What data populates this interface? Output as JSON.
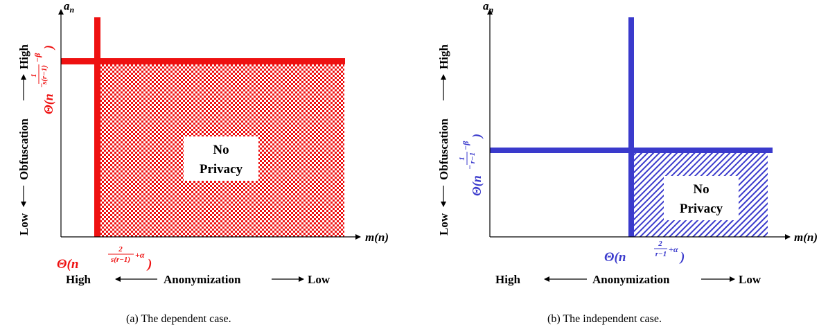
{
  "panels": [
    {
      "id": "a",
      "color": "#ee1111",
      "pattern": "checker",
      "y_axis_label": "a",
      "y_axis_sub": "n",
      "x_axis_label": "m(n)",
      "y_threshold": {
        "theta": "Θ(n",
        "exp_sign": "−",
        "frac_num": "1",
        "frac_den": "s(r−1)",
        "exp_tail": "−β",
        "close": ")"
      },
      "x_threshold": {
        "theta": "Θ(n",
        "frac_num": "2",
        "frac_den": "s(r−1)",
        "exp_tail": "+α",
        "close": ")"
      },
      "y_scale": {
        "low": "Low",
        "title": "Obfuscation",
        "high": "High"
      },
      "x_scale": {
        "left": "High",
        "title": "Anonymization",
        "right": "Low"
      },
      "region_label_1": "No",
      "region_label_2": "Privacy",
      "caption": "(a) The dependent case."
    },
    {
      "id": "b",
      "color": "#3a3acc",
      "pattern": "hatch",
      "y_axis_label": "a",
      "y_axis_sub": "n",
      "x_axis_label": "m(n)",
      "y_threshold": {
        "theta": "Θ(n",
        "exp_sign": "−",
        "frac_num": "1",
        "frac_den": "r−1",
        "exp_tail": "−β",
        "close": ")"
      },
      "x_threshold": {
        "theta": "Θ(n",
        "frac_num": "2",
        "frac_den": "r−1",
        "exp_tail": "+α",
        "close": ")"
      },
      "y_scale": {
        "low": "Low",
        "title": "Obfuscation",
        "high": "High"
      },
      "x_scale": {
        "left": "High",
        "title": "Anonymization",
        "right": "Low"
      },
      "region_label_1": "No",
      "region_label_2": "Privacy",
      "caption": "(b) The independent case."
    }
  ]
}
